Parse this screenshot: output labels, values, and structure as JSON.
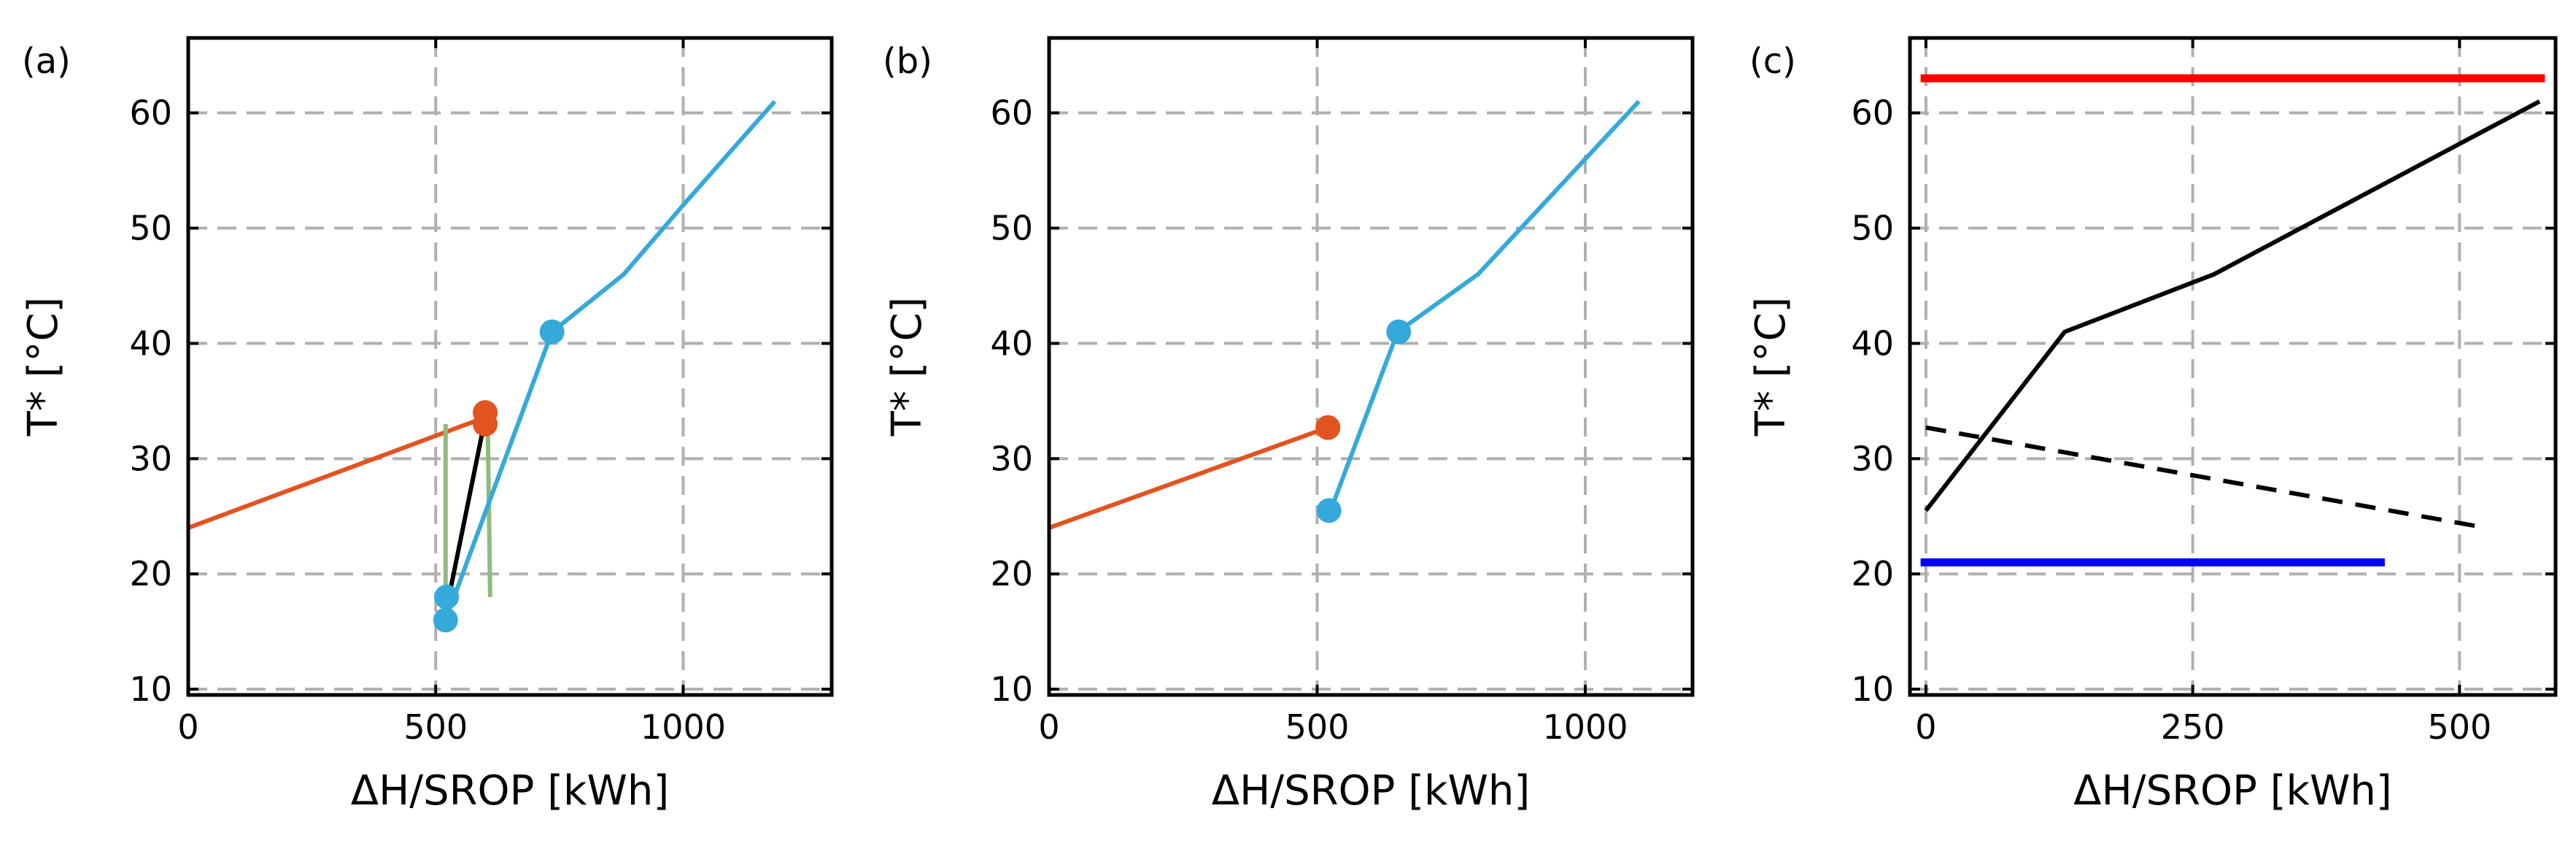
{
  "chart_data": [
    {
      "type": "line",
      "panel_label": "(a)",
      "xlabel": "ΔH/SROP [kWh]",
      "ylabel": "T* [°C]",
      "xlim": [
        0,
        1300
      ],
      "ylim": [
        9.5,
        66.5
      ],
      "xticks": [
        0,
        500,
        1000
      ],
      "yticks": [
        10,
        20,
        30,
        40,
        50,
        60
      ],
      "grid": true,
      "series": [
        {
          "name": "orange",
          "color": "#E2531F",
          "width": 6,
          "dash": "",
          "x": [
            0,
            595
          ],
          "y": [
            24,
            33.5
          ]
        },
        {
          "name": "green",
          "color": "#8FBA7C",
          "width": 6,
          "dash": "",
          "x": [
            520,
            520
          ],
          "y": [
            33,
            16
          ]
        },
        {
          "name": "green-2",
          "color": "#8FBA7C",
          "width": 6,
          "dash": "",
          "x": [
            605,
            610
          ],
          "y": [
            33.5,
            18
          ]
        },
        {
          "name": "black",
          "color": "#000000",
          "width": 6,
          "dash": "",
          "x": [
            522,
            600
          ],
          "y": [
            17,
            33.5
          ]
        },
        {
          "name": "blue",
          "color": "#36A9DB",
          "width": 6,
          "dash": "",
          "x": [
            520,
            735,
            880,
            1000,
            1185
          ],
          "y": [
            16,
            41,
            46,
            52,
            61
          ]
        }
      ],
      "points": [
        {
          "color": "#36A9DB",
          "x": 520,
          "y": 16
        },
        {
          "color": "#36A9DB",
          "x": 522,
          "y": 18
        },
        {
          "color": "#36A9DB",
          "x": 735,
          "y": 41
        },
        {
          "color": "#E2531F",
          "x": 600,
          "y": 34
        },
        {
          "color": "#E2531F",
          "x": 600,
          "y": 33
        }
      ]
    },
    {
      "type": "line",
      "panel_label": "(b)",
      "xlabel": "ΔH/SROP [kWh]",
      "ylabel": "T* [°C]",
      "xlim": [
        0,
        1200
      ],
      "ylim": [
        9.5,
        66.5
      ],
      "xticks": [
        0,
        500,
        1000
      ],
      "yticks": [
        10,
        20,
        30,
        40,
        50,
        60
      ],
      "grid": true,
      "series": [
        {
          "name": "orange",
          "color": "#E2531F",
          "width": 6,
          "dash": "",
          "x": [
            0,
            520
          ],
          "y": [
            24,
            32.7
          ]
        },
        {
          "name": "blue",
          "color": "#36A9DB",
          "width": 6,
          "dash": "",
          "x": [
            525,
            650,
            800,
            920,
            1100
          ],
          "y": [
            25.5,
            41,
            46,
            52,
            61
          ]
        }
      ],
      "points": [
        {
          "color": "#E2531F",
          "x": 520,
          "y": 32.7
        },
        {
          "color": "#36A9DB",
          "x": 522,
          "y": 25.5
        },
        {
          "color": "#36A9DB",
          "x": 652,
          "y": 41
        }
      ]
    },
    {
      "type": "line",
      "panel_label": "(c)",
      "xlabel": "ΔH/SROP [kWh]",
      "ylabel": "T* [°C]",
      "xlim": [
        -15,
        590
      ],
      "ylim": [
        9.5,
        66.5
      ],
      "xticks": [
        0,
        250,
        500
      ],
      "yticks": [
        10,
        20,
        30,
        40,
        50,
        60
      ],
      "grid": true,
      "series": [
        {
          "name": "red",
          "color": "#FF0000",
          "width": 11,
          "dash": "",
          "x": [
            -5,
            580
          ],
          "y": [
            63,
            63
          ]
        },
        {
          "name": "black-solid",
          "color": "#000000",
          "width": 6,
          "dash": "",
          "x": [
            0,
            130,
            270,
            575
          ],
          "y": [
            25.5,
            41,
            46,
            61
          ]
        },
        {
          "name": "black-dashed",
          "color": "#000000",
          "width": 6,
          "dash": "28 18",
          "x": [
            0,
            525
          ],
          "y": [
            32.7,
            24
          ]
        },
        {
          "name": "blue",
          "color": "#0000FF",
          "width": 11,
          "dash": "",
          "x": [
            -5,
            430
          ],
          "y": [
            21,
            21
          ]
        }
      ],
      "points": []
    }
  ]
}
